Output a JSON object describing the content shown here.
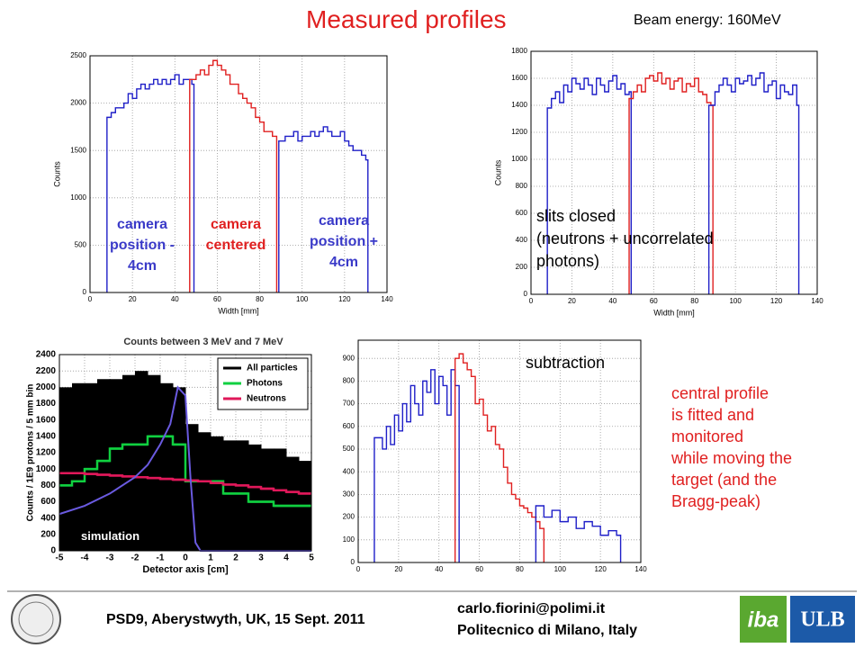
{
  "title": "Measured profiles",
  "beam_energy": "Beam energy: 160MeV",
  "slits_note": [
    "slits closed",
    "(neutrons + uncorrelated",
    "photons)"
  ],
  "subtraction_note": "subtraction",
  "central_note": [
    "central profile",
    "is fitted and",
    "monitored",
    "while moving the",
    "target (and the",
    "Bragg-peak)"
  ],
  "simulation_note": "simulation",
  "footer": {
    "conference": "PSD9, Aberystwyth, UK, 15 Sept. 2011",
    "email": "carlo.fiorini@polimi.it",
    "institute": "Politecnico di Milano, Italy",
    "logo_iba": "iba",
    "logo_ulb": "ULB"
  },
  "chart_data": [
    {
      "type": "line",
      "step": true,
      "xlabel": "Width [mm]",
      "ylabel": "Counts",
      "xlim": [
        0,
        140
      ],
      "ylim": [
        0,
        2500
      ],
      "xticks": [
        0,
        20,
        40,
        60,
        80,
        100,
        120,
        140
      ],
      "yticks": [
        0,
        500,
        1000,
        1500,
        2000,
        2500
      ],
      "grid": true,
      "series": [
        {
          "name": "camera position - 4cm",
          "color": "#1f1fc8",
          "x": [
            8,
            8,
            10,
            12,
            14,
            16,
            18,
            20,
            22,
            24,
            26,
            28,
            30,
            32,
            34,
            36,
            38,
            40,
            42,
            44,
            46,
            48,
            49,
            49
          ],
          "values": [
            0,
            1850,
            1900,
            1950,
            1950,
            2000,
            2100,
            2050,
            2150,
            2200,
            2150,
            2200,
            2250,
            2200,
            2250,
            2200,
            2250,
            2300,
            2200,
            2250,
            2250,
            2200,
            2200,
            0
          ]
        },
        {
          "name": "camera centered",
          "color": "#e02020",
          "x": [
            47,
            47,
            50,
            52,
            54,
            56,
            58,
            60,
            62,
            64,
            66,
            68,
            70,
            72,
            74,
            76,
            78,
            80,
            82,
            84,
            86,
            88,
            88
          ],
          "values": [
            0,
            2250,
            2300,
            2350,
            2300,
            2400,
            2450,
            2400,
            2350,
            2300,
            2200,
            2200,
            2100,
            2050,
            2000,
            1950,
            1850,
            1800,
            1700,
            1700,
            1650,
            1600,
            0
          ]
        },
        {
          "name": "camera position + 4cm",
          "color": "#1f1fc8",
          "x": [
            89,
            89,
            92,
            94,
            96,
            98,
            100,
            102,
            104,
            106,
            108,
            110,
            112,
            114,
            116,
            118,
            120,
            122,
            124,
            126,
            128,
            130,
            131,
            131
          ],
          "values": [
            0,
            1600,
            1650,
            1650,
            1700,
            1600,
            1650,
            1650,
            1700,
            1650,
            1700,
            1750,
            1700,
            1650,
            1650,
            1700,
            1600,
            1550,
            1500,
            1500,
            1450,
            1400,
            1400,
            0
          ]
        }
      ]
    },
    {
      "type": "line",
      "step": true,
      "xlabel": "Width [mm]",
      "ylabel": "Counts",
      "xlim": [
        0,
        140
      ],
      "ylim": [
        0,
        1800
      ],
      "xticks": [
        0,
        20,
        40,
        60,
        80,
        100,
        120,
        140
      ],
      "yticks": [
        0,
        200,
        400,
        600,
        800,
        1000,
        1200,
        1400,
        1600,
        1800
      ],
      "grid": true,
      "series": [
        {
          "color": "#1f1fc8",
          "x": [
            8,
            8,
            10,
            12,
            14,
            16,
            18,
            20,
            22,
            24,
            26,
            28,
            30,
            32,
            34,
            36,
            38,
            40,
            42,
            44,
            46,
            48,
            49,
            49
          ],
          "values": [
            0,
            1380,
            1450,
            1500,
            1420,
            1550,
            1500,
            1600,
            1560,
            1520,
            1600,
            1550,
            1480,
            1600,
            1550,
            1500,
            1580,
            1620,
            1520,
            1560,
            1480,
            1500,
            1500,
            0
          ]
        },
        {
          "color": "#e02020",
          "x": [
            48,
            48,
            50,
            52,
            54,
            56,
            58,
            60,
            62,
            64,
            66,
            68,
            70,
            72,
            74,
            76,
            78,
            80,
            82,
            84,
            86,
            88,
            89,
            89
          ],
          "values": [
            0,
            1450,
            1500,
            1550,
            1500,
            1600,
            1620,
            1580,
            1640,
            1560,
            1600,
            1520,
            1580,
            1600,
            1500,
            1560,
            1540,
            1600,
            1500,
            1480,
            1420,
            1400,
            1400,
            0
          ]
        },
        {
          "color": "#1f1fc8",
          "x": [
            87,
            87,
            90,
            92,
            94,
            96,
            98,
            100,
            102,
            104,
            106,
            108,
            110,
            112,
            114,
            116,
            118,
            120,
            122,
            124,
            126,
            128,
            130,
            131,
            131
          ],
          "values": [
            0,
            1400,
            1500,
            1550,
            1600,
            1550,
            1500,
            1600,
            1560,
            1580,
            1620,
            1550,
            1600,
            1640,
            1500,
            1550,
            1580,
            1450,
            1550,
            1500,
            1480,
            1550,
            1400,
            1400,
            0
          ]
        }
      ]
    },
    {
      "type": "histogram",
      "title": "Counts between 3 MeV and 7 MeV",
      "xlabel": "Detector axis [cm]",
      "ylabel": "Counts / 1E9 protons / 5 mm bin",
      "xlim": [
        -5,
        5
      ],
      "ylim": [
        0,
        2400
      ],
      "xticks": [
        -5,
        -4,
        -3,
        -2,
        -1,
        0,
        1,
        2,
        3,
        4,
        5
      ],
      "yticks": [
        0,
        200,
        400,
        600,
        800,
        1000,
        1200,
        1400,
        1600,
        1800,
        2000,
        2200,
        2400
      ],
      "grid": true,
      "legend": "upper right",
      "bins": [
        -5,
        -4.5,
        -4,
        -3.5,
        -3,
        -2.5,
        -2,
        -1.5,
        -1,
        -0.5,
        0,
        0.5,
        1,
        1.5,
        2,
        2.5,
        3,
        3.5,
        4,
        4.5,
        5
      ],
      "series": [
        {
          "name": "All particles",
          "color": "#000000",
          "fill": true,
          "values": [
            2000,
            2050,
            2050,
            2100,
            2100,
            2150,
            2200,
            2150,
            2050,
            2000,
            1550,
            1450,
            1400,
            1350,
            1350,
            1300,
            1250,
            1250,
            1150,
            1100
          ]
        },
        {
          "name": "Photons",
          "color": "#10d040",
          "values": [
            800,
            850,
            1000,
            1100,
            1250,
            1300,
            1300,
            1400,
            1400,
            1300,
            850,
            850,
            850,
            700,
            700,
            600,
            600,
            550,
            550,
            550
          ]
        },
        {
          "name": "Neutrons",
          "color": "#e0185a",
          "values": [
            950,
            950,
            940,
            930,
            920,
            910,
            900,
            890,
            880,
            870,
            860,
            850,
            830,
            810,
            800,
            780,
            760,
            740,
            720,
            700
          ]
        },
        {
          "color": "#6a5ae0",
          "x": [
            -5,
            -4,
            -3,
            -2,
            -1.5,
            -1,
            -0.6,
            -0.3,
            0,
            0.2,
            0.4,
            0.6,
            5
          ],
          "values": [
            450,
            550,
            700,
            900,
            1050,
            1300,
            1550,
            2000,
            1900,
            900,
            100,
            0,
            0
          ]
        }
      ]
    },
    {
      "type": "line",
      "step": true,
      "xlim": [
        0,
        140
      ],
      "ylim": [
        0,
        980
      ],
      "xticks": [
        0,
        20,
        40,
        60,
        80,
        100,
        120,
        140
      ],
      "yticks": [
        0,
        100,
        200,
        300,
        400,
        500,
        600,
        700,
        800,
        900
      ],
      "grid": true,
      "series": [
        {
          "color": "#1f1fc8",
          "x": [
            8,
            8,
            12,
            14,
            16,
            18,
            20,
            22,
            24,
            26,
            28,
            30,
            32,
            34,
            36,
            38,
            40,
            42,
            44,
            46,
            48,
            50,
            50
          ],
          "values": [
            0,
            550,
            500,
            600,
            520,
            650,
            580,
            700,
            620,
            780,
            700,
            650,
            800,
            750,
            850,
            700,
            820,
            780,
            650,
            850,
            780,
            700,
            0
          ]
        },
        {
          "color": "#e02020",
          "x": [
            48,
            48,
            50,
            52,
            54,
            56,
            58,
            60,
            62,
            64,
            66,
            68,
            70,
            72,
            74,
            76,
            78,
            80,
            82,
            84,
            86,
            88,
            90,
            92,
            92
          ],
          "values": [
            0,
            900,
            920,
            880,
            850,
            820,
            700,
            720,
            650,
            580,
            600,
            520,
            500,
            420,
            350,
            300,
            280,
            250,
            240,
            220,
            200,
            180,
            150,
            140,
            0
          ]
        },
        {
          "color": "#1f1fc8",
          "x": [
            88,
            88,
            92,
            96,
            100,
            104,
            108,
            112,
            116,
            120,
            124,
            128,
            130,
            130
          ],
          "values": [
            0,
            250,
            200,
            230,
            180,
            200,
            150,
            180,
            160,
            120,
            140,
            120,
            100,
            0
          ]
        }
      ]
    }
  ]
}
